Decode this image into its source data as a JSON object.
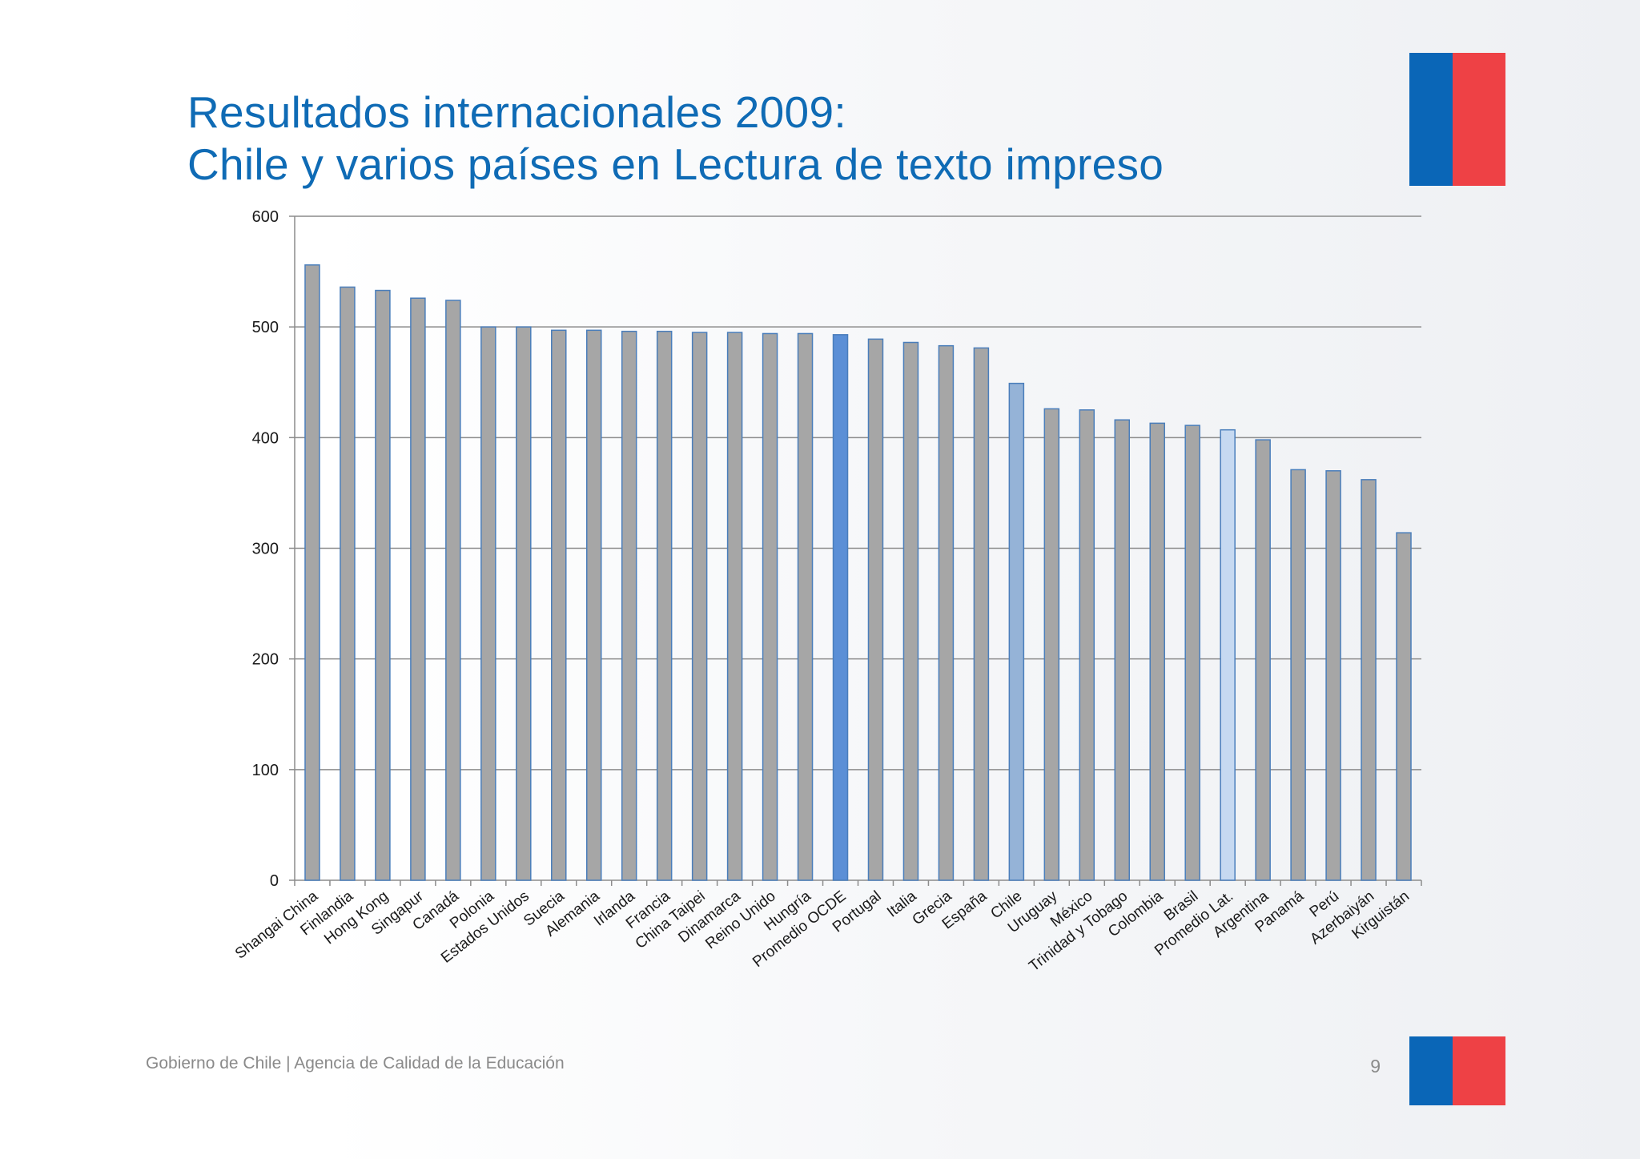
{
  "title": {
    "line1": "Resultados internacionales 2009:",
    "line2": "Chile y varios países en Lectura de texto impreso"
  },
  "footer": {
    "text": "Gobierno de Chile | Agencia de Calidad de la Educación",
    "page_number": "9"
  },
  "colors": {
    "title": "#0f6bb5",
    "bar_default": "#a6a6a6",
    "bar_border": "#4a7ebb",
    "bar_oecd_average": "#5b8fd6",
    "bar_chile": "#95b3d7",
    "bar_latam_average": "#c6d9f1",
    "flag_blue": "#0a66b7",
    "flag_red": "#ee4145"
  },
  "chart_data": {
    "type": "bar",
    "title": "",
    "xlabel": "",
    "ylabel": "",
    "ylim": [
      0,
      600
    ],
    "yticks": [
      0,
      100,
      200,
      300,
      400,
      500,
      600
    ],
    "grid": true,
    "legend": "none",
    "categories": [
      "Shangai China",
      "Finlandia",
      "Hong Kong",
      "Singapur",
      "Canadá",
      "Polonia",
      "Estados Unidos",
      "Suecia",
      "Alemania",
      "Irlanda",
      "Francia",
      "China Taipei",
      "Dinamarca",
      "Reino Unido",
      "Hungría",
      "Promedio OCDE",
      "Portugal",
      "Italia",
      "Grecia",
      "España",
      "Chile",
      "Uruguay",
      "México",
      "Trinidad y Tobago",
      "Colombia",
      "Brasil",
      "Promedio Lat.",
      "Argentina",
      "Panamá",
      "Perú",
      "Azerbaiyán",
      "Kirguistán"
    ],
    "values": [
      556,
      536,
      533,
      526,
      524,
      500,
      500,
      497,
      497,
      496,
      496,
      495,
      495,
      494,
      494,
      493,
      489,
      486,
      483,
      481,
      449,
      426,
      425,
      416,
      413,
      411,
      407,
      398,
      371,
      370,
      362,
      314
    ],
    "highlight": {
      "Promedio OCDE": "oecd",
      "Chile": "chile",
      "Promedio Lat.": "latam"
    }
  }
}
